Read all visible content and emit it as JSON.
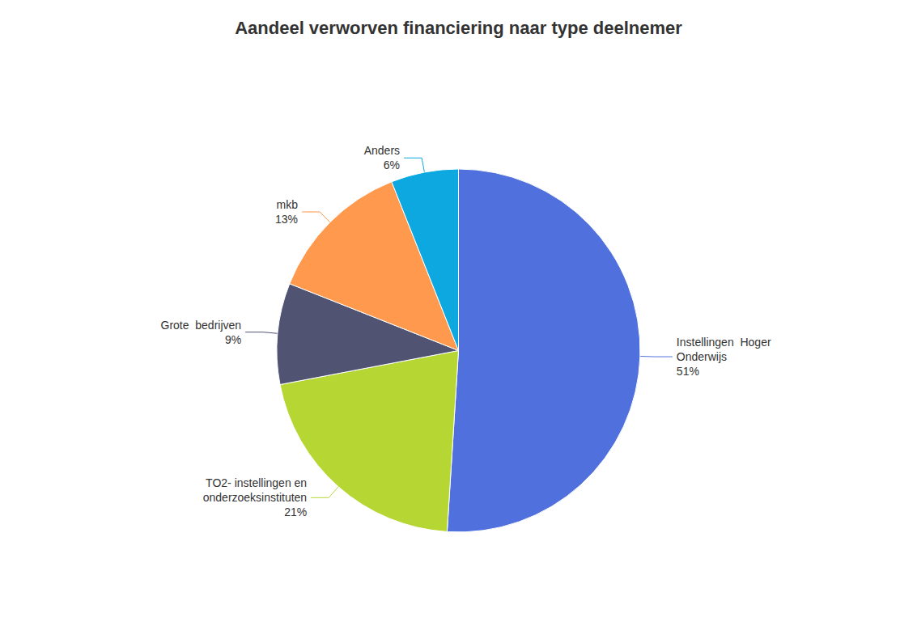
{
  "chart_data": {
    "type": "pie",
    "title": "Aandeel verworven financiering naar type deelnemer",
    "categories": [
      "Instellingen  Hoger\nOnderwijs",
      "TO2- instellingen en\nonderzoeksinstituten",
      "Grote  bedrijven",
      "mkb",
      "Anders"
    ],
    "values": [
      51,
      21,
      9,
      13,
      6
    ],
    "value_labels": [
      "51%",
      "21%",
      "9%",
      "13%",
      "6%"
    ],
    "data_labels": true,
    "legend": false
  }
}
